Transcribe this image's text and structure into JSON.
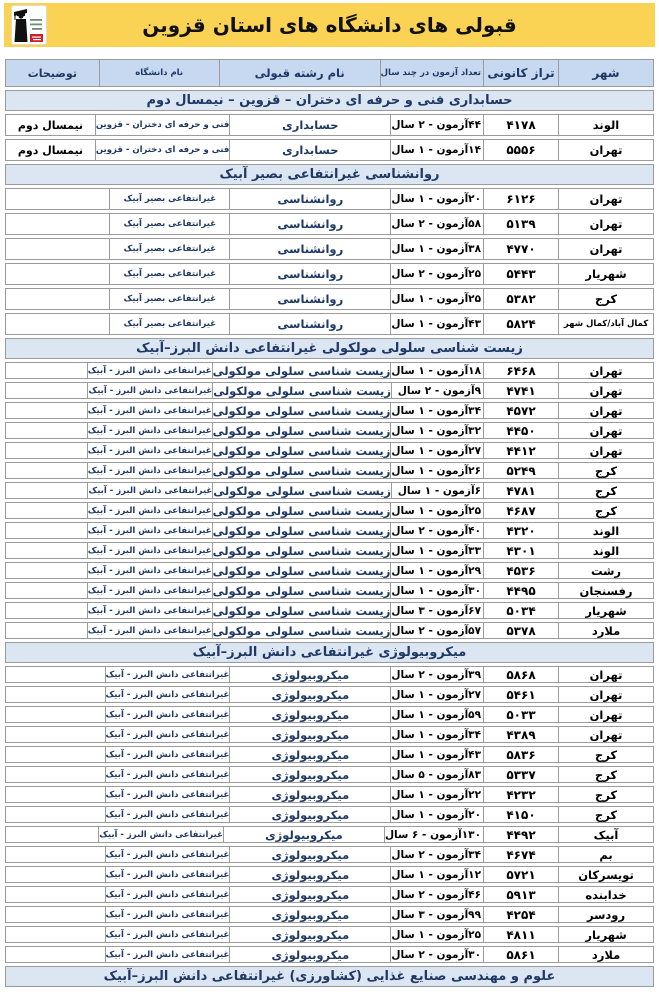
{
  "header": {
    "title": "قبولی های دانشگاه های استان قزوین",
    "logo": "kanoon-graduate-logo"
  },
  "colors": {
    "banner_yellow": "#FAD355",
    "column_header_blue": "#C6D9F1",
    "section_header_blue": "#DCE6F3",
    "heading_text_navy": "#1F3864",
    "border_gray": "#9B9B9B",
    "logo_red": "#CC2229"
  },
  "table": {
    "columns": [
      {
        "key": "city",
        "label": "شهر"
      },
      {
        "key": "score",
        "label": "تراز کانونی"
      },
      {
        "key": "exams",
        "label": "تعداد آزمون در چند سال"
      },
      {
        "key": "major",
        "label": "نام رشته قبولی"
      },
      {
        "key": "university",
        "label": "نام دانشگاه"
      },
      {
        "key": "notes",
        "label": "توضیحات"
      }
    ],
    "sections": [
      {
        "title": "حسابداری فنی و حرفه ای دختران – قزوین – نیمسال دوم",
        "rows": [
          {
            "city": "الوند",
            "score": "۴۱۷۸",
            "exams": "۴۴آزمون - ۲ سال",
            "major": "حسابداری",
            "university": "فنی و حرفه ای دختران - قزوین",
            "notes": "نیمسال دوم"
          },
          {
            "city": "تهران",
            "score": "۵۵۵۶",
            "exams": "۱۴آزمون - ۱ سال",
            "major": "حسابداری",
            "university": "فنی و حرفه ای دختران - قزوین",
            "notes": "نیمسال دوم"
          }
        ]
      },
      {
        "title": "روانشناسی غیرانتفاعی بصیر آبیک",
        "rows": [
          {
            "city": "تهران",
            "score": "۶۱۲۶",
            "exams": "۲۰آزمون - ۱ سال",
            "major": "روانشناسی",
            "university": "غیرانتفاعی بصیر آبیک",
            "notes": ""
          },
          {
            "city": "تهران",
            "score": "۵۱۳۹",
            "exams": "۵۸آزمون - ۲ سال",
            "major": "روانشناسی",
            "university": "غیرانتفاعی بصیر آبیک",
            "notes": ""
          },
          {
            "city": "تهران",
            "score": "۴۷۷۰",
            "exams": "۳۸آزمون - ۱ سال",
            "major": "روانشناسی",
            "university": "غیرانتفاعی بصیر آبیک",
            "notes": ""
          },
          {
            "city": "شهریار",
            "score": "۵۴۴۳",
            "exams": "۲۵آزمون - ۲ سال",
            "major": "روانشناسی",
            "university": "غیرانتفاعی بصیر آبیک",
            "notes": ""
          },
          {
            "city": "کرج",
            "score": "۵۳۸۲",
            "exams": "۲۵آزمون - ۱ سال",
            "major": "روانشناسی",
            "university": "غیرانتفاعی بصیر آبیک",
            "notes": ""
          },
          {
            "city": "کمال آباد/کمال شهر",
            "score": "۵۸۲۴",
            "exams": "۴۳آزمون - ۱ سال",
            "major": "روانشناسی",
            "university": "غیرانتفاعی بصیر آبیک",
            "notes": ""
          }
        ]
      },
      {
        "title": "زیست شناسی سلولی مولکولی غیرانتفاعی دانش البرز–آبیک",
        "rows": [
          {
            "city": "تهران",
            "score": "۶۴۶۸",
            "exams": "۱۸آزمون - ۱ سال",
            "major": "زیست شناسی سلولی مولکولی",
            "university": "غیرانتفاعی دانش البرز - آبیک",
            "notes": ""
          },
          {
            "city": "تهران",
            "score": "۴۷۴۱",
            "exams": "۹آزمون - ۲ سال",
            "major": "زیست شناسی سلولی مولکولی",
            "university": "غیرانتفاعی دانش البرز - آبیک",
            "notes": ""
          },
          {
            "city": "تهران",
            "score": "۴۵۷۲",
            "exams": "۳۴آزمون - ۱ سال",
            "major": "زیست شناسی سلولی مولکولی",
            "university": "غیرانتفاعی دانش البرز - آبیک",
            "notes": ""
          },
          {
            "city": "تهران",
            "score": "۴۴۵۰",
            "exams": "۳۲آزمون - ۱ سال",
            "major": "زیست شناسی سلولی مولکولی",
            "university": "غیرانتفاعی دانش البرز - آبیک",
            "notes": ""
          },
          {
            "city": "تهران",
            "score": "۴۴۱۲",
            "exams": "۲۷آزمون - ۱ سال",
            "major": "زیست شناسی سلولی مولکولی",
            "university": "غیرانتفاعی دانش البرز - آبیک",
            "notes": ""
          },
          {
            "city": "کرج",
            "score": "۵۲۴۹",
            "exams": "۲۶آزمون - ۱ سال",
            "major": "زیست شناسی سلولی مولکولی",
            "university": "غیرانتفاعی دانش البرز - آبیک",
            "notes": ""
          },
          {
            "city": "کرج",
            "score": "۴۷۸۱",
            "exams": "۶آزمون - ۱ سال",
            "major": "زیست شناسی سلولی مولکولی",
            "university": "غیرانتفاعی دانش البرز - آبیک",
            "notes": ""
          },
          {
            "city": "کرج",
            "score": "۴۶۸۷",
            "exams": "۲۵آزمون - ۱ سال",
            "major": "زیست شناسی سلولی مولکولی",
            "university": "غیرانتفاعی دانش البرز - آبیک",
            "notes": ""
          },
          {
            "city": "الوند",
            "score": "۴۳۲۰",
            "exams": "۴۰آزمون - ۲ سال",
            "major": "زیست شناسی سلولی مولکولی",
            "university": "غیرانتفاعی دانش البرز - آبیک",
            "notes": ""
          },
          {
            "city": "الوند",
            "score": "۴۳۰۱",
            "exams": "۳۳آزمون - ۱ سال",
            "major": "زیست شناسی سلولی مولکولی",
            "university": "غیرانتفاعی دانش البرز - آبیک",
            "notes": ""
          },
          {
            "city": "رشت",
            "score": "۴۵۳۶",
            "exams": "۲۹آزمون - ۱ سال",
            "major": "زیست شناسی سلولی مولکولی",
            "university": "غیرانتفاعی دانش البرز - آبیک",
            "notes": ""
          },
          {
            "city": "رفسنجان",
            "score": "۴۴۹۵",
            "exams": "۳۰آزمون - ۱ سال",
            "major": "زیست شناسی سلولی مولکولی",
            "university": "غیرانتفاعی دانش البرز - آبیک",
            "notes": ""
          },
          {
            "city": "شهریار",
            "score": "۵۰۳۴",
            "exams": "۶۷آزمون - ۳ سال",
            "major": "زیست شناسی سلولی مولکولی",
            "university": "غیرانتفاعی دانش البرز - آبیک",
            "notes": ""
          },
          {
            "city": "ملارد",
            "score": "۵۳۷۸",
            "exams": "۵۷آزمون - ۲ سال",
            "major": "زیست شناسی سلولی مولکولی",
            "university": "غیرانتفاعی دانش البرز - آبیک",
            "notes": ""
          }
        ]
      },
      {
        "title": "میکروبیولوژی غیرانتفاعی دانش البرز–آبیک",
        "rows": [
          {
            "city": "تهران",
            "score": "۵۸۶۸",
            "exams": "۳۹آزمون - ۲ سال",
            "major": "میکروبیولوژی",
            "university": "غیرانتفاعی دانش البرز - آبیک",
            "notes": ""
          },
          {
            "city": "تهران",
            "score": "۵۴۶۱",
            "exams": "۲۷آزمون - ۱ سال",
            "major": "میکروبیولوژی",
            "university": "غیرانتفاعی دانش البرز - آبیک",
            "notes": ""
          },
          {
            "city": "تهران",
            "score": "۵۰۳۳",
            "exams": "۵۹آزمون - ۱ سال",
            "major": "میکروبیولوژی",
            "university": "غیرانتفاعی دانش البرز - آبیک",
            "notes": ""
          },
          {
            "city": "تهران",
            "score": "۴۳۸۹",
            "exams": "۳۴آزمون - ۱ سال",
            "major": "میکروبیولوژی",
            "university": "غیرانتفاعی دانش البرز - آبیک",
            "notes": ""
          },
          {
            "city": "کرج",
            "score": "۵۸۳۶",
            "exams": "۴۳آزمون - ۱ سال",
            "major": "میکروبیولوژی",
            "university": "غیرانتفاعی دانش البرز - آبیک",
            "notes": ""
          },
          {
            "city": "کرج",
            "score": "۵۳۳۷",
            "exams": "۸۳آزمون - ۵ سال",
            "major": "میکروبیولوژی",
            "university": "غیرانتفاعی دانش البرز - آبیک",
            "notes": ""
          },
          {
            "city": "کرج",
            "score": "۴۲۳۲",
            "exams": "۲۲آزمون - ۱ سال",
            "major": "میکروبیولوژی",
            "university": "غیرانتفاعی دانش البرز - آبیک",
            "notes": ""
          },
          {
            "city": "کرج",
            "score": "۴۱۵۰",
            "exams": "۲۰آزمون - ۱ سال",
            "major": "میکروبیولوژی",
            "university": "غیرانتفاعی دانش البرز - آبیک",
            "notes": ""
          },
          {
            "city": "آبیک",
            "score": "۴۴۹۲",
            "exams": "۱۳۰آزمون - ۶ سال",
            "major": "میکروبیولوژی",
            "university": "غیرانتفاعی دانش البرز - آبیک",
            "notes": ""
          },
          {
            "city": "بم",
            "score": "۴۶۷۴",
            "exams": "۳۴آزمون - ۲ سال",
            "major": "میکروبیولوژی",
            "university": "غیرانتفاعی دانش البرز - آبیک",
            "notes": ""
          },
          {
            "city": "تویسرکان",
            "score": "۵۷۲۱",
            "exams": "۱۲آزمون - ۱ سال",
            "major": "میکروبیولوژی",
            "university": "غیرانتفاعی دانش البرز - آبیک",
            "notes": ""
          },
          {
            "city": "خدابنده",
            "score": "۵۹۱۳",
            "exams": "۴۶آزمون - ۲ سال",
            "major": "میکروبیولوژی",
            "university": "غیرانتفاعی دانش البرز - آبیک",
            "notes": ""
          },
          {
            "city": "رودسر",
            "score": "۴۲۵۴",
            "exams": "۹۹آزمون - ۳ سال",
            "major": "میکروبیولوژی",
            "university": "غیرانتفاعی دانش البرز - آبیک",
            "notes": ""
          },
          {
            "city": "شهریار",
            "score": "۴۸۱۱",
            "exams": "۲۵آزمون - ۱ سال",
            "major": "میکروبیولوژی",
            "university": "غیرانتفاعی دانش البرز - آبیک",
            "notes": ""
          },
          {
            "city": "ملارد",
            "score": "۵۸۶۱",
            "exams": "۳۰آزمون - ۲ سال",
            "major": "میکروبیولوژی",
            "university": "غیرانتفاعی دانش البرز - آبیک",
            "notes": ""
          }
        ]
      },
      {
        "title": "علوم و مهندسی صنایع غذایی (کشاورزی) غیرانتفاعی دانش البرز–آبیک",
        "rows": []
      }
    ]
  }
}
